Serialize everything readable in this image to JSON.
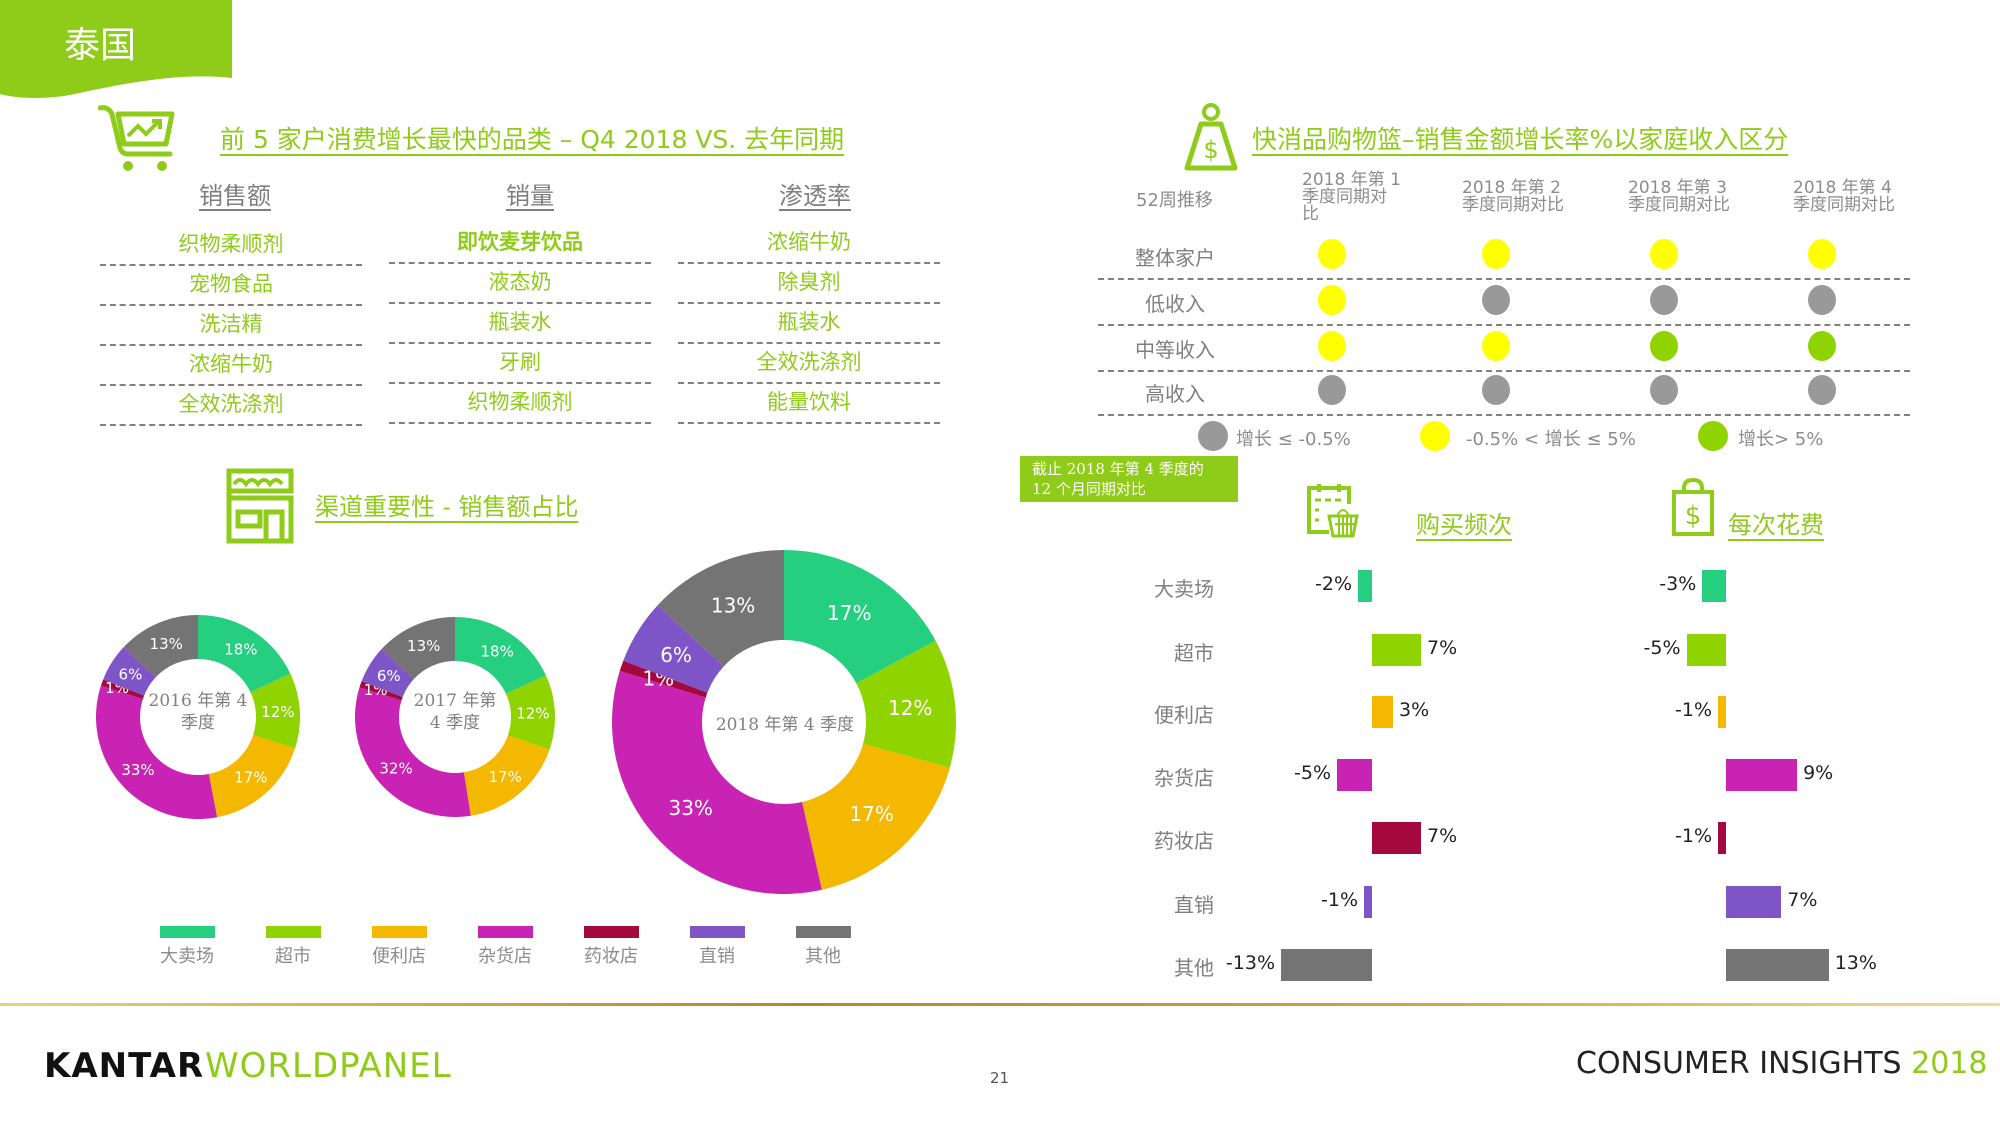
{
  "header": {
    "country": "泰国"
  },
  "colors": {
    "brand_green": "#8fcb19",
    "channels": {
      "大卖场": "#26cf80",
      "超市": "#8fd400",
      "便利店": "#f5b800",
      "杂货店": "#c823b2",
      "药妆店": "#a3093d",
      "直销": "#7d55c7",
      "其他": "#747474"
    },
    "dot_grey": "#999999",
    "dot_yellow": "#ffff00",
    "dot_green": "#8fd400"
  },
  "top_categories": {
    "title": "前 5 家户消费增长最快的品类 – Q4 2018 VS. 去年同期",
    "columns": [
      {
        "header": "销售额",
        "items": [
          "织物柔顺剂",
          "宠物食品",
          "洗洁精",
          "浓缩牛奶",
          "全效洗涤剂"
        ]
      },
      {
        "header": "销量",
        "items": [
          "即饮麦芽饮品",
          "液态奶",
          "瓶装水",
          "牙刷",
          "织物柔顺剂"
        ]
      },
      {
        "header": "渗透率",
        "items": [
          "浓缩牛奶",
          "除臭剂",
          "瓶装水",
          "全效洗涤剂",
          "能量饮料"
        ]
      }
    ]
  },
  "channel_share": {
    "title": "渠道重要性 - 销售额占比",
    "legend": [
      "大卖场",
      "超市",
      "便利店",
      "杂货店",
      "药妆店",
      "直销",
      "其他"
    ]
  },
  "income_table": {
    "title": "快消品购物篮–销售金额增长率%以家庭收入区分",
    "corner": "52周推移",
    "col_headers": [
      [
        "2018 年第 1",
        "季度同期对",
        "比"
      ],
      [
        "2018 年第 2",
        "季度同期对比"
      ],
      [
        "2018 年第 3",
        "季度同期对比"
      ],
      [
        "2018 年第 4",
        "季度同期对比"
      ]
    ],
    "rows": [
      {
        "label": "整体家户",
        "dots": [
          "yellow",
          "yellow",
          "yellow",
          "yellow"
        ]
      },
      {
        "label": "低收入",
        "dots": [
          "yellow",
          "grey",
          "grey",
          "grey"
        ]
      },
      {
        "label": "中等收入",
        "dots": [
          "yellow",
          "yellow",
          "green",
          "green"
        ]
      },
      {
        "label": "高收入",
        "dots": [
          "grey",
          "grey",
          "grey",
          "grey"
        ]
      }
    ],
    "legend": [
      {
        "color": "grey",
        "text": "增长 ≤ -0.5%"
      },
      {
        "color": "yellow",
        "text": "-0.5% < 增长 ≤ 5%"
      },
      {
        "color": "green",
        "text": "增长> 5%"
      }
    ]
  },
  "date_note": [
    "截止 2018 年第 4 季度的",
    "12 个月同期对比"
  ],
  "frequency": {
    "title": "购买频次"
  },
  "spend": {
    "title": "每次花费"
  },
  "chart_data": [
    {
      "type": "pie",
      "title": "2016 年第 4 季度",
      "donut": true,
      "categories": [
        "大卖场",
        "超市",
        "便利店",
        "杂货店",
        "药妆店",
        "直销",
        "其他"
      ],
      "values": [
        18,
        12,
        17,
        33,
        1,
        6,
        13
      ],
      "labels": [
        "18%",
        "12%",
        "17%",
        "33%",
        "1%",
        "6%",
        "13%"
      ]
    },
    {
      "type": "pie",
      "title": "2017 年第 4 季度",
      "donut": true,
      "categories": [
        "大卖场",
        "超市",
        "便利店",
        "杂货店",
        "药妆店",
        "直销",
        "其他"
      ],
      "values": [
        18,
        12,
        17,
        32,
        1,
        6,
        13
      ],
      "labels": [
        "18%",
        "12%",
        "17%",
        "32%",
        "1%",
        "6%",
        "13%"
      ]
    },
    {
      "type": "pie",
      "title": "2018 年第 4 季度",
      "donut": true,
      "categories": [
        "大卖场",
        "超市",
        "便利店",
        "杂货店",
        "药妆店",
        "直销",
        "其他"
      ],
      "values": [
        17,
        12,
        17,
        33,
        1,
        6,
        13
      ],
      "labels": [
        "17%",
        "12%",
        "17%",
        "33%",
        "1%",
        "6%",
        "13%"
      ]
    },
    {
      "type": "bar",
      "orientation": "horizontal",
      "title": "购买频次",
      "categories": [
        "大卖场",
        "超市",
        "便利店",
        "杂货店",
        "药妆店",
        "直销",
        "其他"
      ],
      "values": [
        -2,
        7,
        3,
        -5,
        7,
        -1,
        -13
      ],
      "labels": [
        "-2%",
        "7%",
        "3%",
        "-5%",
        "7%",
        "-1%",
        "-13%"
      ]
    },
    {
      "type": "bar",
      "orientation": "horizontal",
      "title": "每次花费",
      "categories": [
        "大卖场",
        "超市",
        "便利店",
        "杂货店",
        "药妆店",
        "直销",
        "其他"
      ],
      "values": [
        -3,
        -5,
        -1,
        9,
        -1,
        7,
        13
      ],
      "labels": [
        "-3%",
        "-5%",
        "-1%",
        "9%",
        "-1%",
        "7%",
        "13%"
      ]
    }
  ],
  "footer": {
    "logo_left": "KANTAR",
    "logo_right": "WORLDPANEL",
    "page_number": "21",
    "tagline": "CONSUMER INSIGHTS",
    "tagline_year": "2018"
  }
}
